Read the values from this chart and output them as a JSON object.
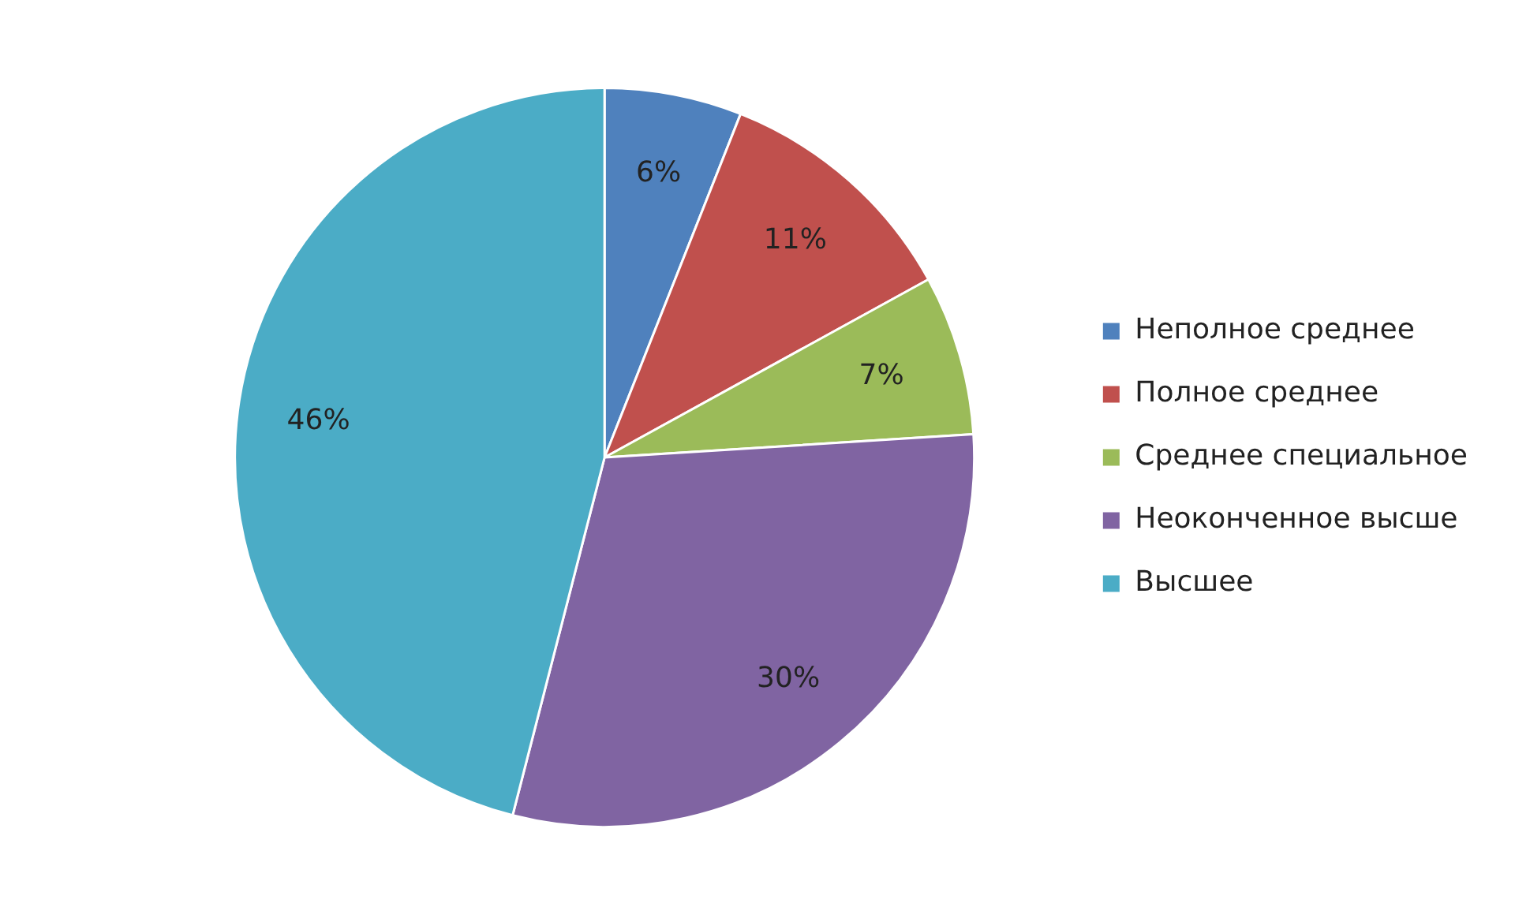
{
  "chart_data": {
    "type": "pie",
    "categories": [
      "Неполное среднее",
      "Полное среднее",
      "Среднее специальное",
      "Неоконченное высше",
      "Высшее"
    ],
    "values": [
      6,
      11,
      7,
      30,
      46
    ],
    "colors": [
      "#4f81bd",
      "#c0504d",
      "#9bbb59",
      "#8064a2",
      "#4bacc6"
    ],
    "value_labels": [
      "6%",
      "11%",
      "7%",
      "30%",
      "46%"
    ],
    "legend": "right"
  }
}
